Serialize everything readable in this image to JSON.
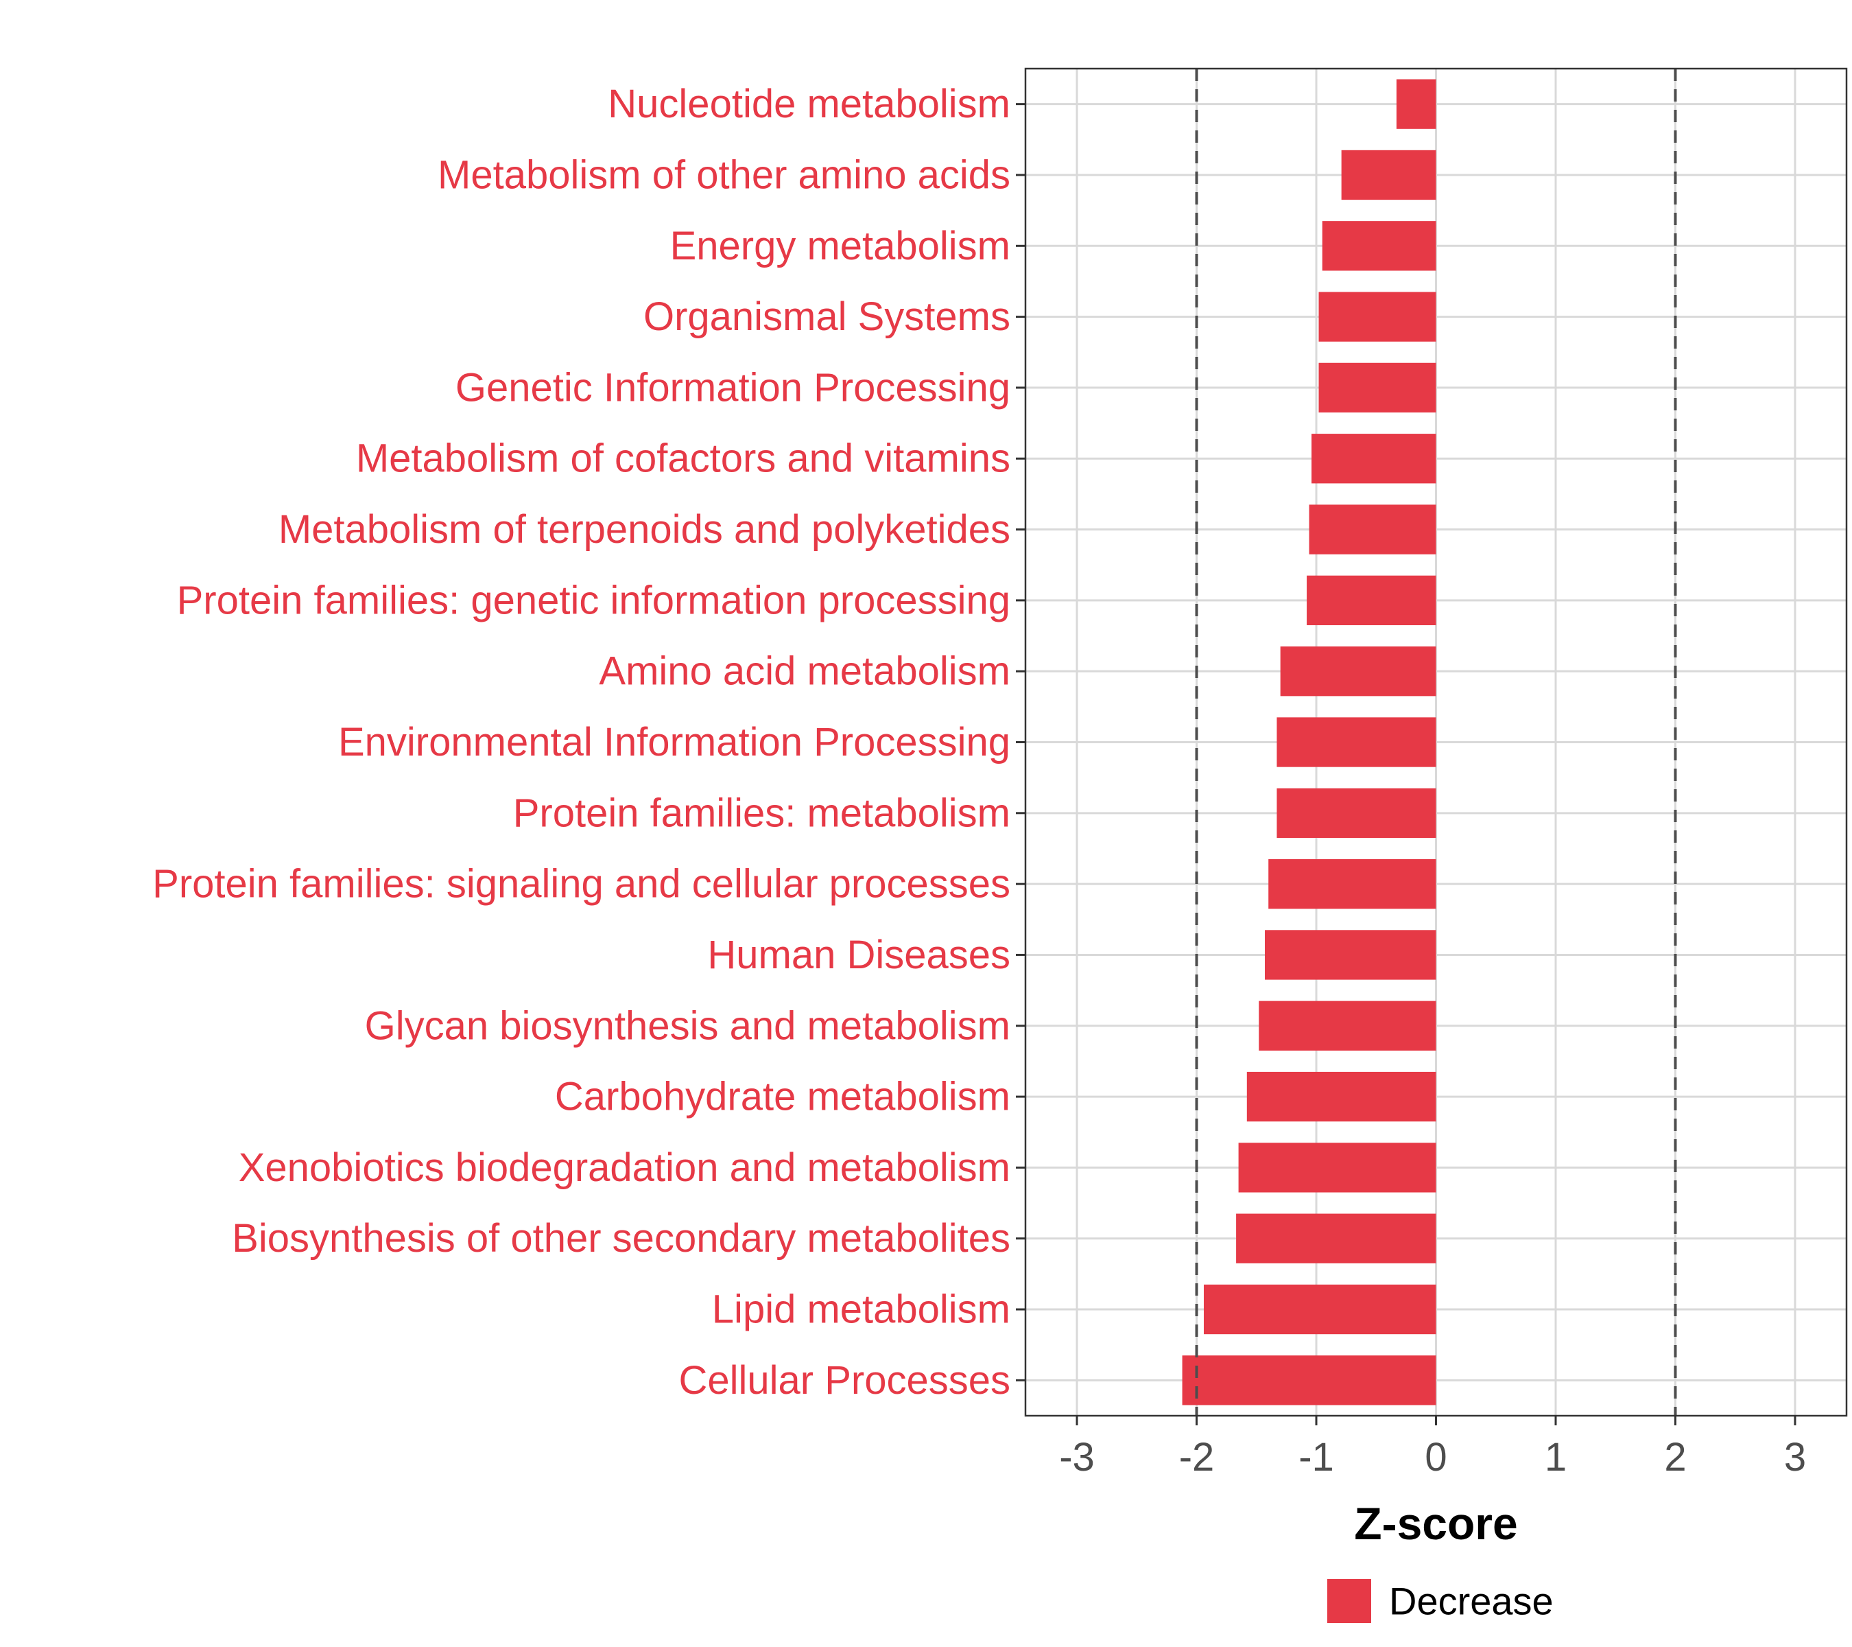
{
  "chart_data": {
    "type": "bar",
    "orientation": "horizontal",
    "categories": [
      "Nucleotide metabolism",
      "Metabolism of other amino acids",
      "Energy metabolism",
      "Organismal Systems",
      "Genetic Information Processing",
      "Metabolism of cofactors and vitamins",
      "Metabolism of terpenoids and polyketides",
      "Protein families: genetic information processing",
      "Amino acid metabolism",
      "Environmental Information Processing",
      "Protein families: metabolism",
      "Protein families: signaling and cellular processes",
      "Human Diseases",
      "Glycan biosynthesis and metabolism",
      "Carbohydrate metabolism",
      "Xenobiotics biodegradation and metabolism",
      "Biosynthesis of other secondary metabolites",
      "Lipid metabolism",
      "Cellular Processes"
    ],
    "values": [
      -0.33,
      -0.79,
      -0.95,
      -0.98,
      -0.98,
      -1.04,
      -1.06,
      -1.08,
      -1.3,
      -1.33,
      -1.33,
      -1.4,
      -1.43,
      -1.48,
      -1.58,
      -1.65,
      -1.67,
      -1.94,
      -2.12
    ],
    "xlabel": "Z-score",
    "ylabel": "",
    "xlim": [
      -3.43,
      3.43
    ],
    "xticks": [
      "-3",
      "-2",
      "-1",
      "0",
      "1",
      "2",
      "3"
    ],
    "xtick_values": [
      -3,
      -2,
      -1,
      0,
      1,
      2,
      3
    ],
    "reference_lines": [
      -2,
      2
    ],
    "grid": true,
    "legend": {
      "position": "bottom",
      "entries": [
        {
          "label": "Decrease",
          "color": "#e63946"
        }
      ]
    },
    "colors": {
      "bar": "#e63946",
      "label": "#e63946",
      "grid": "#d9d9d9",
      "reference_line": "#4d4d4d"
    }
  }
}
